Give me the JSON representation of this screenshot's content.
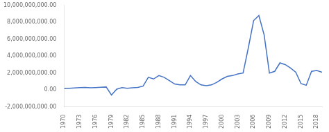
{
  "chart_data": {
    "type": "line",
    "x": [
      1970,
      1971,
      1972,
      1973,
      1974,
      1975,
      1976,
      1977,
      1978,
      1979,
      1980,
      1981,
      1982,
      1983,
      1984,
      1985,
      1986,
      1987,
      1988,
      1989,
      1990,
      1991,
      1992,
      1993,
      1994,
      1995,
      1996,
      1997,
      1998,
      1999,
      2000,
      2001,
      2002,
      2003,
      2004,
      2005,
      2006,
      2007,
      2008,
      2009,
      2010,
      2011,
      2012,
      2013,
      2014,
      2015,
      2016,
      2017,
      2018,
      2019
    ],
    "values": [
      180000000,
      200000000,
      230000000,
      270000000,
      290000000,
      260000000,
      280000000,
      310000000,
      350000000,
      -600000000,
      100000000,
      280000000,
      200000000,
      250000000,
      300000000,
      450000000,
      1500000000,
      1300000000,
      1700000000,
      1500000000,
      1100000000,
      700000000,
      600000000,
      600000000,
      1700000000,
      1000000000,
      600000000,
      500000000,
      600000000,
      900000000,
      1300000000,
      1600000000,
      1700000000,
      1900000000,
      2000000000,
      5000000000,
      8200000000,
      8800000000,
      6500000000,
      2000000000,
      2200000000,
      3200000000,
      3000000000,
      2600000000,
      2100000000,
      750000000,
      550000000,
      2200000000,
      2300000000,
      2100000000
    ],
    "color": "#4472C4",
    "xlim": [
      1970,
      2019
    ],
    "xticks": [
      1970,
      1973,
      1976,
      1979,
      1982,
      1985,
      1988,
      1991,
      1994,
      1997,
      2000,
      2003,
      2006,
      2009,
      2012,
      2015,
      2018
    ],
    "ylim": [
      -2000000000,
      10000000000
    ],
    "yticks": [
      {
        "value": -2000000000,
        "label": "-2,000,000,000.00"
      },
      {
        "value": 0,
        "label": "0.00"
      },
      {
        "value": 2000000000,
        "label": "2,000,000,000.00"
      },
      {
        "value": 4000000000,
        "label": "4,000,000,000.00"
      },
      {
        "value": 6000000000,
        "label": "6,000,000,000.00"
      },
      {
        "value": 8000000000,
        "label": "8,000,000,000.00"
      },
      {
        "value": 10000000000,
        "label": "10,000,000,000.00"
      }
    ],
    "grid": false
  }
}
